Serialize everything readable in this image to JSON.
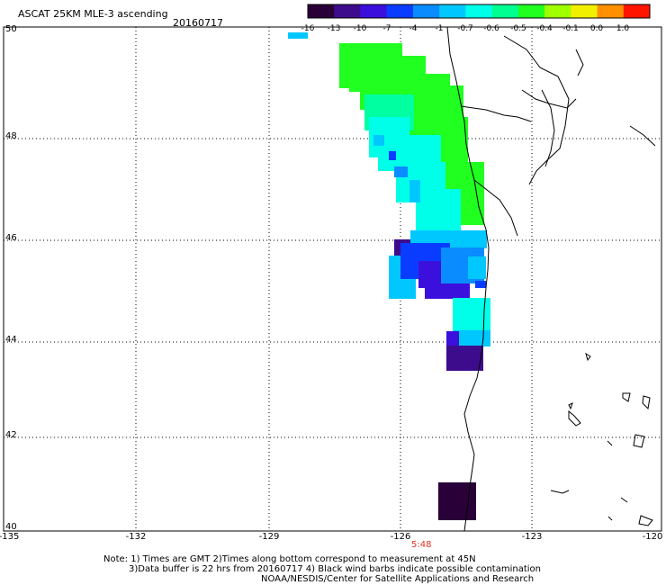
{
  "header": {
    "title": "ASCAT 25KM MLE-3 ascending",
    "date": "20160717"
  },
  "colorbar": {
    "labels": [
      "-16",
      "-13",
      "-10",
      "-7",
      "-4",
      "-1",
      "-0.7",
      "-0.6",
      "-0.5",
      "-0.4",
      "-0.1",
      "0.0",
      "1.0"
    ],
    "colors": [
      "#2a0038",
      "#3d0c8c",
      "#3b10dc",
      "#0a3cff",
      "#0a8cff",
      "#00c8ff",
      "#00ffe8",
      "#00ff90",
      "#20ff20",
      "#a0ff00",
      "#f0f000",
      "#ff9000",
      "#ff1400"
    ]
  },
  "axes": {
    "lat_labels": [
      "50",
      "48",
      "46",
      "44",
      "42",
      "40"
    ],
    "lon_labels": [
      "-135",
      "-132",
      "-129",
      "-126",
      "-123",
      "-120"
    ]
  },
  "time_marker": "5:48",
  "notes": [
    "Note: 1) Times are GMT 2)Times along bottom correspond to measurement at 45N",
    "3)Data buffer is 22 hrs from 20160717 4) Black wind barbs indicate possible contamination",
    "NOAA/NESDIS/Center for Satellite Applications and Research"
  ]
}
